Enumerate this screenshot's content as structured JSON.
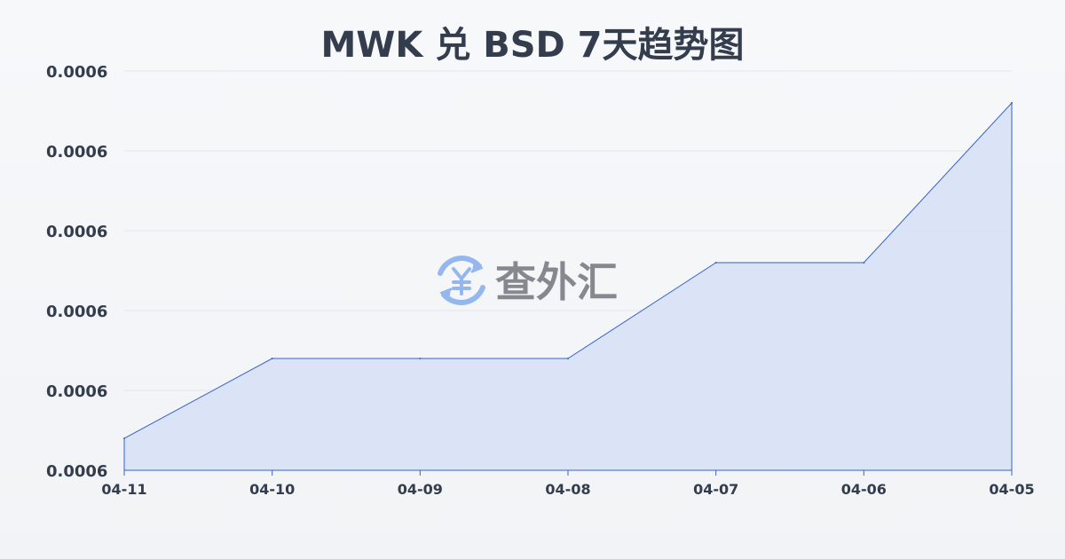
{
  "chart_data": {
    "type": "area",
    "title": "MWK 兑 BSD 7天趋势图",
    "xlabel": "",
    "ylabel": "",
    "categories": [
      "04-11",
      "04-10",
      "04-09",
      "04-08",
      "04-07",
      "04-06",
      "04-05"
    ],
    "values": [
      0.0005762,
      0.0005767,
      0.0005767,
      0.0005767,
      0.0005773,
      0.0005773,
      0.0005783
    ],
    "ylim": [
      0.000576,
      0.0005785
    ],
    "yticks": [
      0.000576,
      0.0005765,
      0.000577,
      0.0005775,
      0.000578,
      0.0005785
    ],
    "ytick_labels": [
      "0.0006",
      "0.0006",
      "0.0006",
      "0.0006",
      "0.0006",
      "0.0006"
    ],
    "grid": true,
    "line_color": "#3563c9",
    "fill_color": "#d9e2f5"
  },
  "watermark": {
    "text": "查外汇",
    "icon": "yuen-exchange-icon",
    "icon_color": "#8fb4f0",
    "text_color": "#80838a"
  }
}
